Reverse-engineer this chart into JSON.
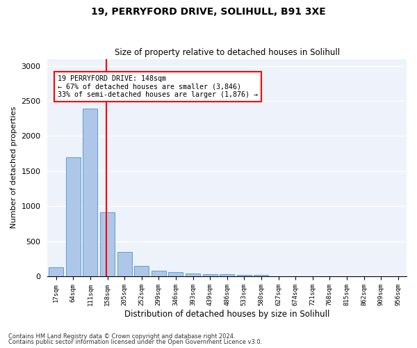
{
  "title1": "19, PERRYFORD DRIVE, SOLIHULL, B91 3XE",
  "title2": "Size of property relative to detached houses in Solihull",
  "xlabel": "Distribution of detached houses by size in Solihull",
  "ylabel": "Number of detached properties",
  "categories": [
    "17sqm",
    "64sqm",
    "111sqm",
    "158sqm",
    "205sqm",
    "252sqm",
    "299sqm",
    "346sqm",
    "393sqm",
    "439sqm",
    "486sqm",
    "533sqm",
    "580sqm",
    "627sqm",
    "674sqm",
    "721sqm",
    "768sqm",
    "815sqm",
    "862sqm",
    "909sqm",
    "956sqm"
  ],
  "values": [
    130,
    1700,
    2390,
    910,
    350,
    150,
    80,
    55,
    40,
    30,
    25,
    20,
    15,
    0,
    0,
    0,
    0,
    0,
    0,
    0,
    0
  ],
  "bar_color": "#aec6e8",
  "bar_edge_color": "#5a9fd4",
  "annotation_text": "19 PERRYFORD DRIVE: 148sqm\n← 67% of detached houses are smaller (3,846)\n33% of semi-detached houses are larger (1,876) →",
  "annotation_box_color": "white",
  "annotation_box_edge_color": "red",
  "vline_color": "red",
  "ylim": [
    0,
    3100
  ],
  "yticks": [
    0,
    500,
    1000,
    1500,
    2000,
    2500,
    3000
  ],
  "background_color": "#eef2fa",
  "grid_color": "white",
  "footer1": "Contains HM Land Registry data © Crown copyright and database right 2024.",
  "footer2": "Contains public sector information licensed under the Open Government Licence v3.0."
}
